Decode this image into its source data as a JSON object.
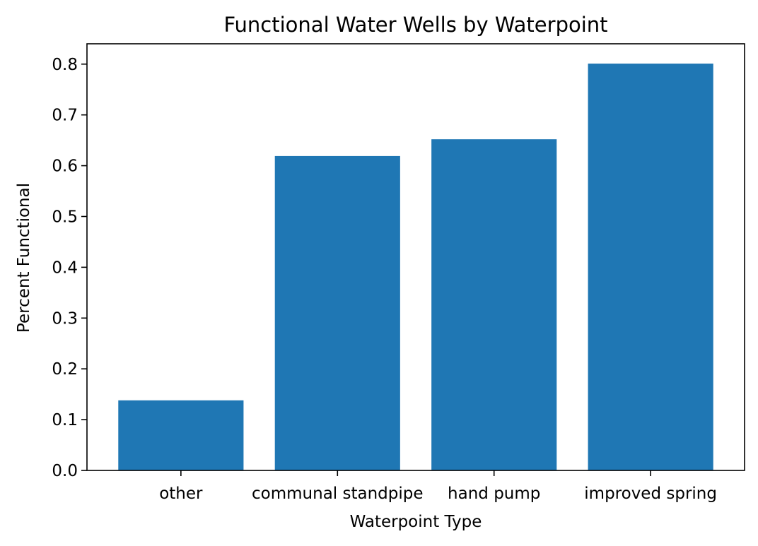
{
  "chart_data": {
    "type": "bar",
    "title": "Functional Water Wells by Waterpoint",
    "xlabel": "Waterpoint Type",
    "ylabel": "Percent Functional",
    "categories": [
      "other",
      "communal standpipe",
      "hand pump",
      "improved spring"
    ],
    "values": [
      0.138,
      0.619,
      0.652,
      0.801
    ],
    "ylim": [
      0,
      0.84
    ],
    "yticks": [
      0.0,
      0.1,
      0.2,
      0.3,
      0.4,
      0.5,
      0.6,
      0.7,
      0.8
    ],
    "ytick_labels": [
      "0.0",
      "0.1",
      "0.2",
      "0.3",
      "0.4",
      "0.5",
      "0.6",
      "0.7",
      "0.8"
    ],
    "grid": false,
    "bar_color": "#1f77b4",
    "axis_color": "#000000"
  }
}
